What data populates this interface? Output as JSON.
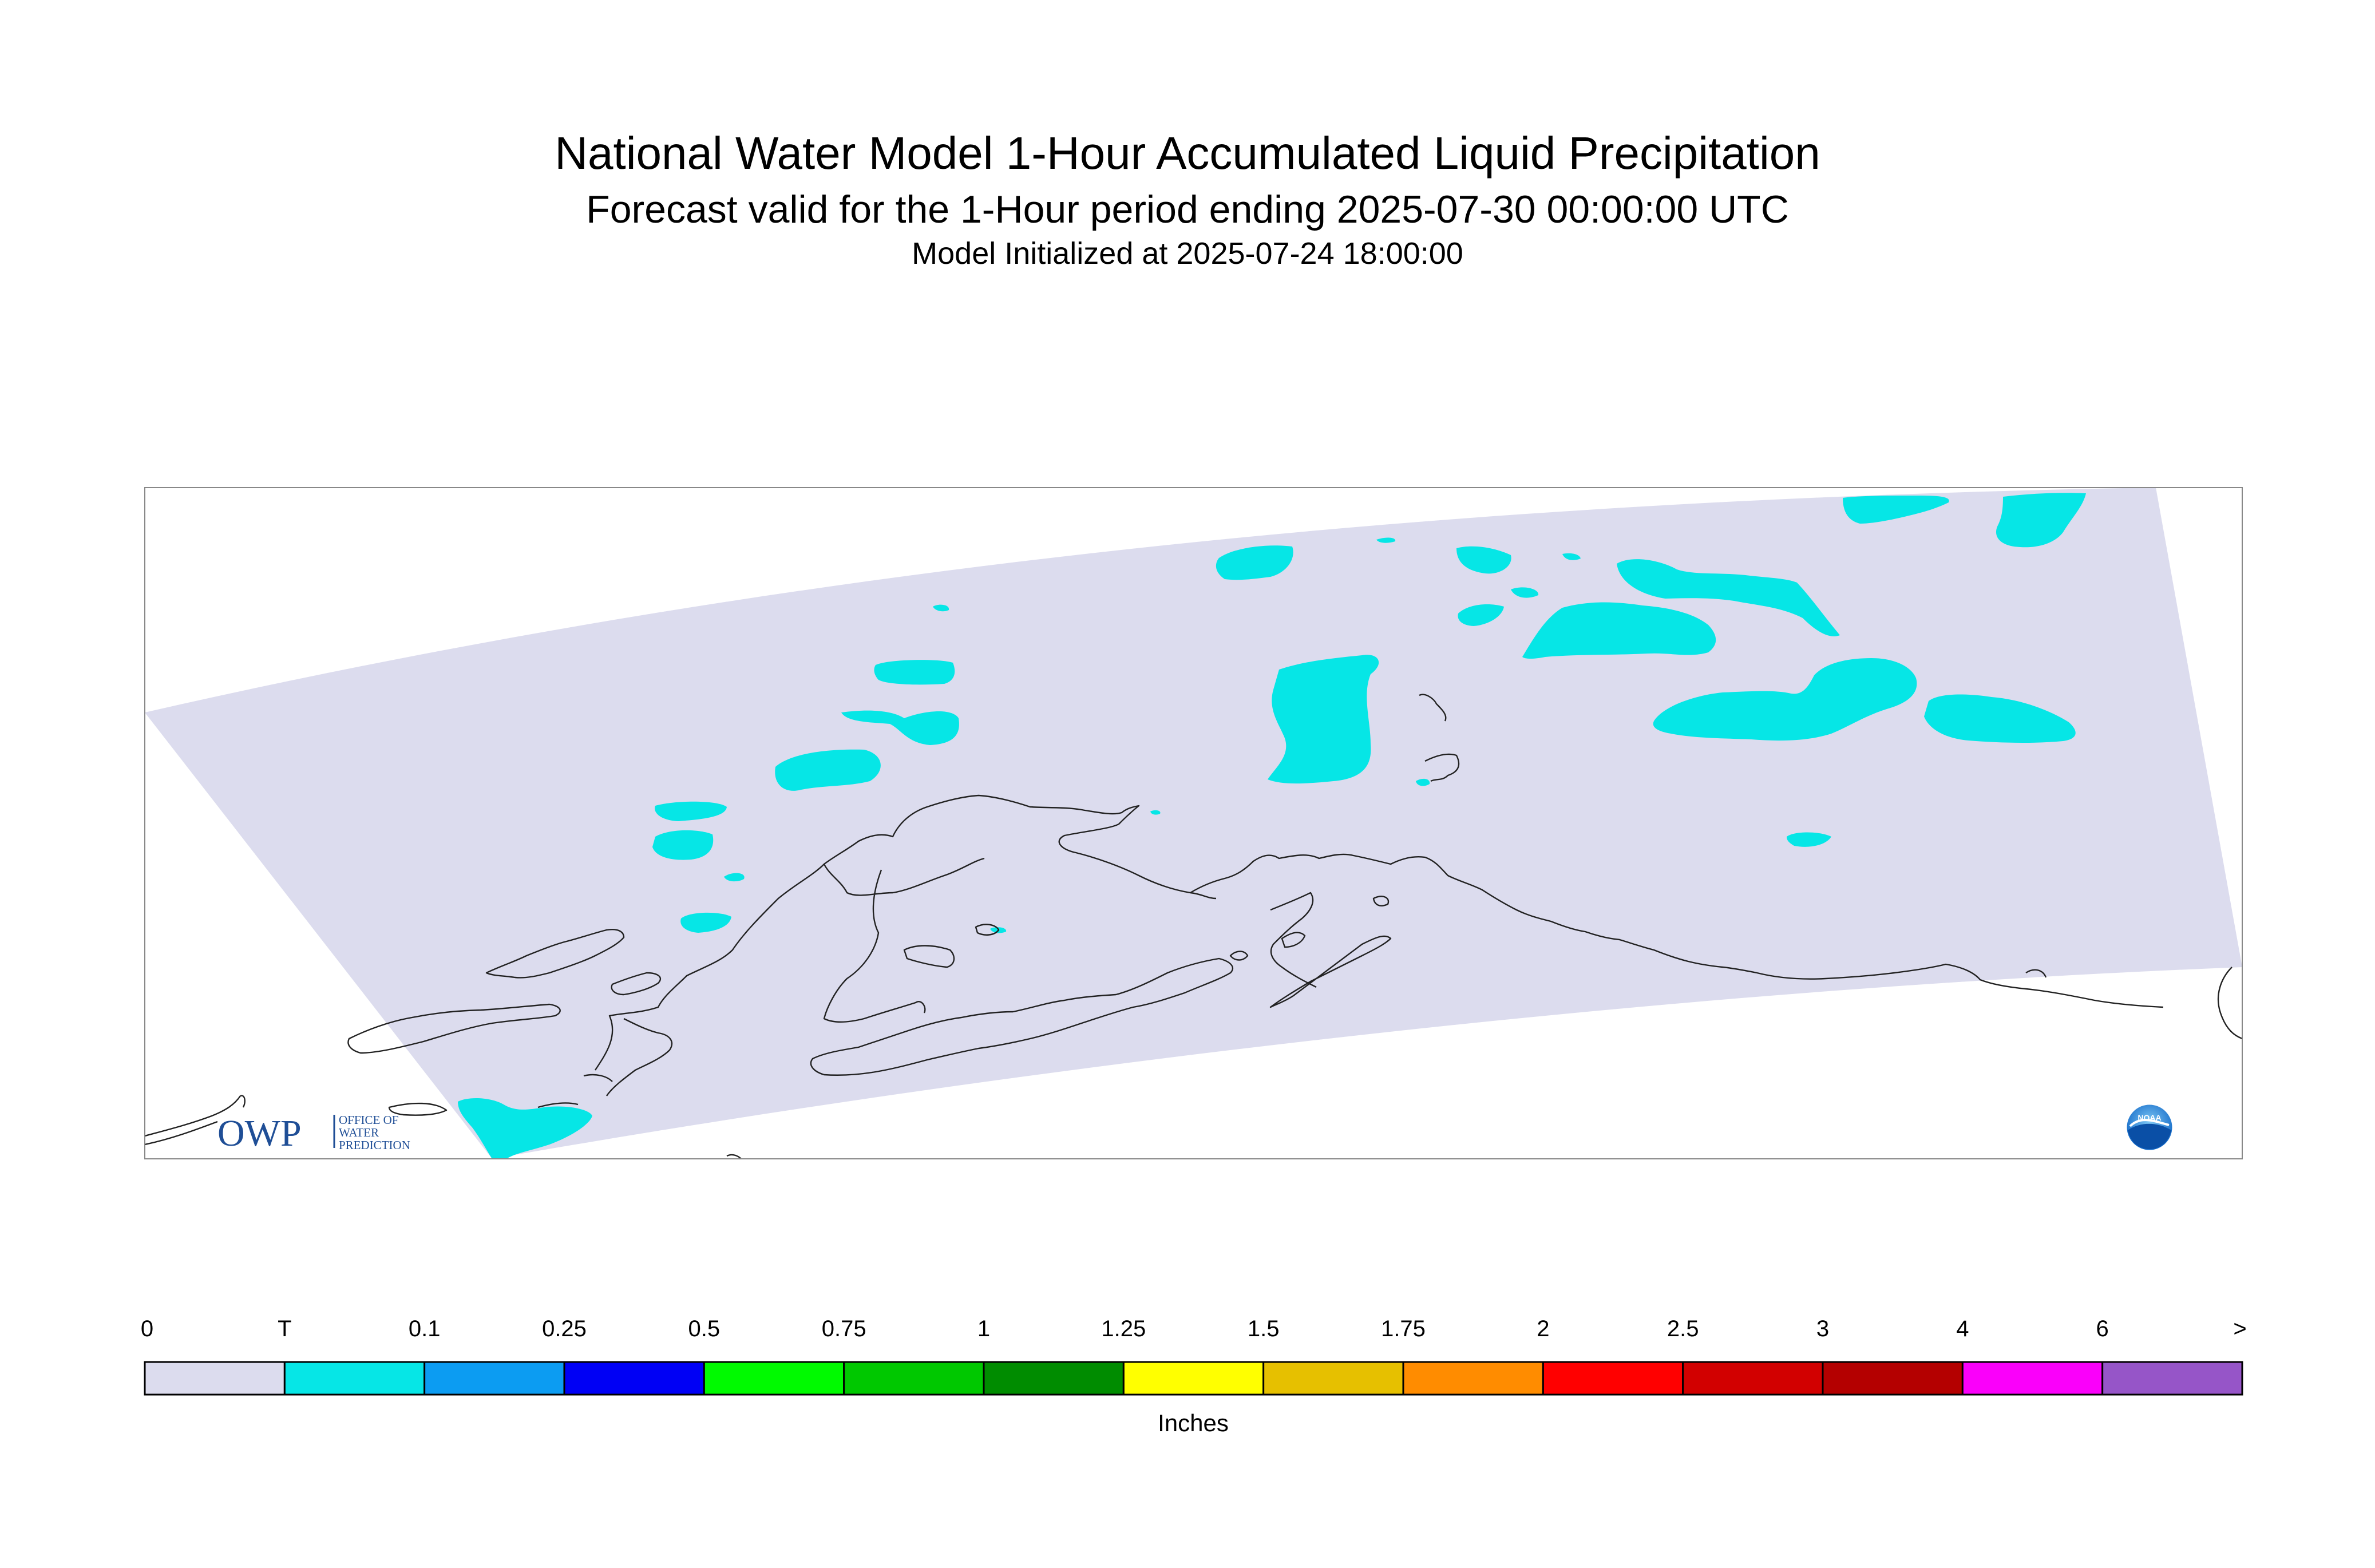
{
  "header": {
    "title": "National Water Model 1-Hour Accumulated Liquid Precipitation",
    "subtitle": "Forecast valid for the 1-Hour period ending 2025-07-30 00:00:00 UTC",
    "init": "Model Initialized at 2025-07-24 18:00:00"
  },
  "logos": {
    "owp_mark": "OWP",
    "owp_text": [
      "OFFICE OF",
      "WATER",
      "PREDICTION"
    ],
    "noaa": "NOAA"
  },
  "colors": {
    "domain": "#dcdcee",
    "trace": "#06e6e6",
    "coast": "#222222"
  },
  "legend": {
    "units": "Inches",
    "labels": [
      "0",
      "T",
      "0.1",
      "0.25",
      "0.5",
      "0.75",
      "1",
      "1.25",
      "1.5",
      "1.75",
      "2",
      "2.5",
      "3",
      "4",
      "6",
      ">"
    ],
    "colors": [
      "#dcdcee",
      "#06e6e6",
      "#0c9cf2",
      "#0000f5",
      "#00fa00",
      "#00c800",
      "#008c00",
      "#ffff00",
      "#e6c000",
      "#ff8c00",
      "#ff0000",
      "#d20000",
      "#b40000",
      "#fa00fa",
      "#9655c8"
    ]
  }
}
